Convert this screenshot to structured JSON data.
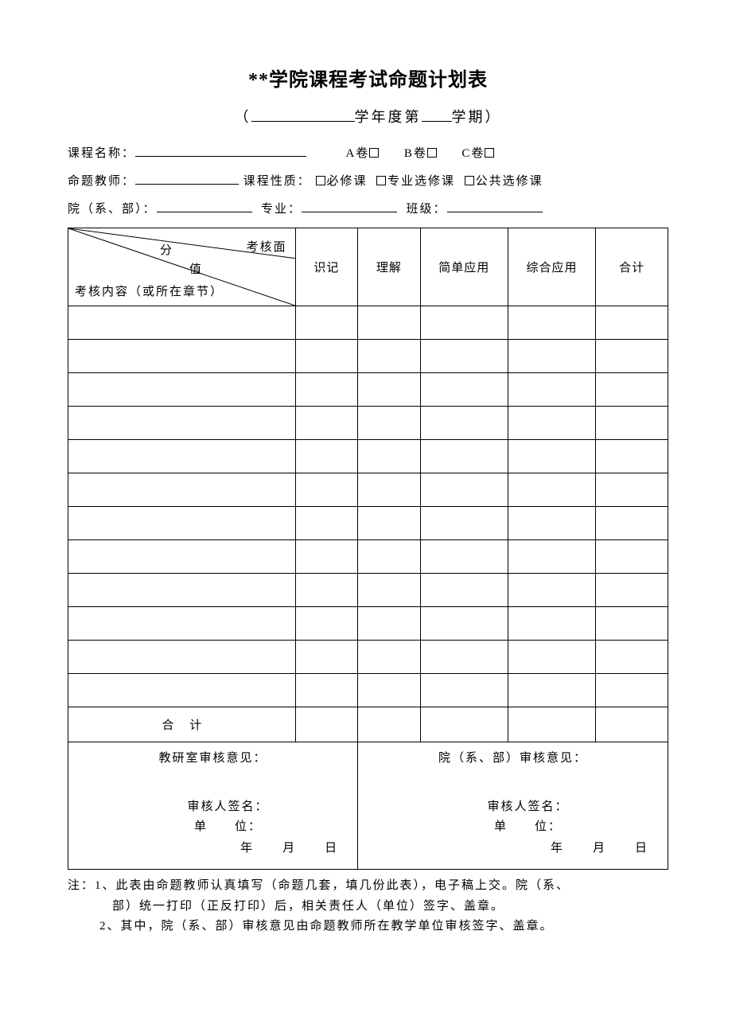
{
  "title": "**学院课程考试命题计划表",
  "subtitle": {
    "open": "（",
    "year_label": "学年度第",
    "term_label": "学期）"
  },
  "info": {
    "course_name_label": "课程名称：",
    "paper_a": "A卷",
    "paper_b": "B卷",
    "paper_c": "C卷",
    "teacher_label": "命题教师：",
    "nature_label": "课程性质：",
    "nature_required": "必修课",
    "nature_major": "专业选修课",
    "nature_public": "公共选修课",
    "dept_label": "院（系、部）：",
    "major_label": "专业：",
    "class_label": "班级："
  },
  "diag": {
    "fen": "分",
    "area": "考核面",
    "zhi": "值",
    "content": "考核内容（或所在章节）"
  },
  "headers": {
    "c1": "识记",
    "c2": "理解",
    "c3": "简单应用",
    "c4": "综合应用",
    "c5": "合计"
  },
  "total_label": "合  计",
  "review": {
    "left_title": "教研室审核意见：",
    "right_title": "院（系、部）审核意见：",
    "sign_label": "审核人签名：",
    "unit_label": "单　　位：",
    "year": "年",
    "month": "月",
    "day": "日"
  },
  "notes": {
    "prefix": "注：",
    "n1a": "1、此表由命题教师认真填写（命题几套，填几份此表），电子稿上交。院（系、",
    "n1b": "部）统一打印（正反打印）后，相关责任人（单位）签字、盖章。",
    "n2": "2、其中，院（系、部）审核意见由命题教师所在教学单位审核签字、盖章。"
  },
  "body_rows": 12
}
